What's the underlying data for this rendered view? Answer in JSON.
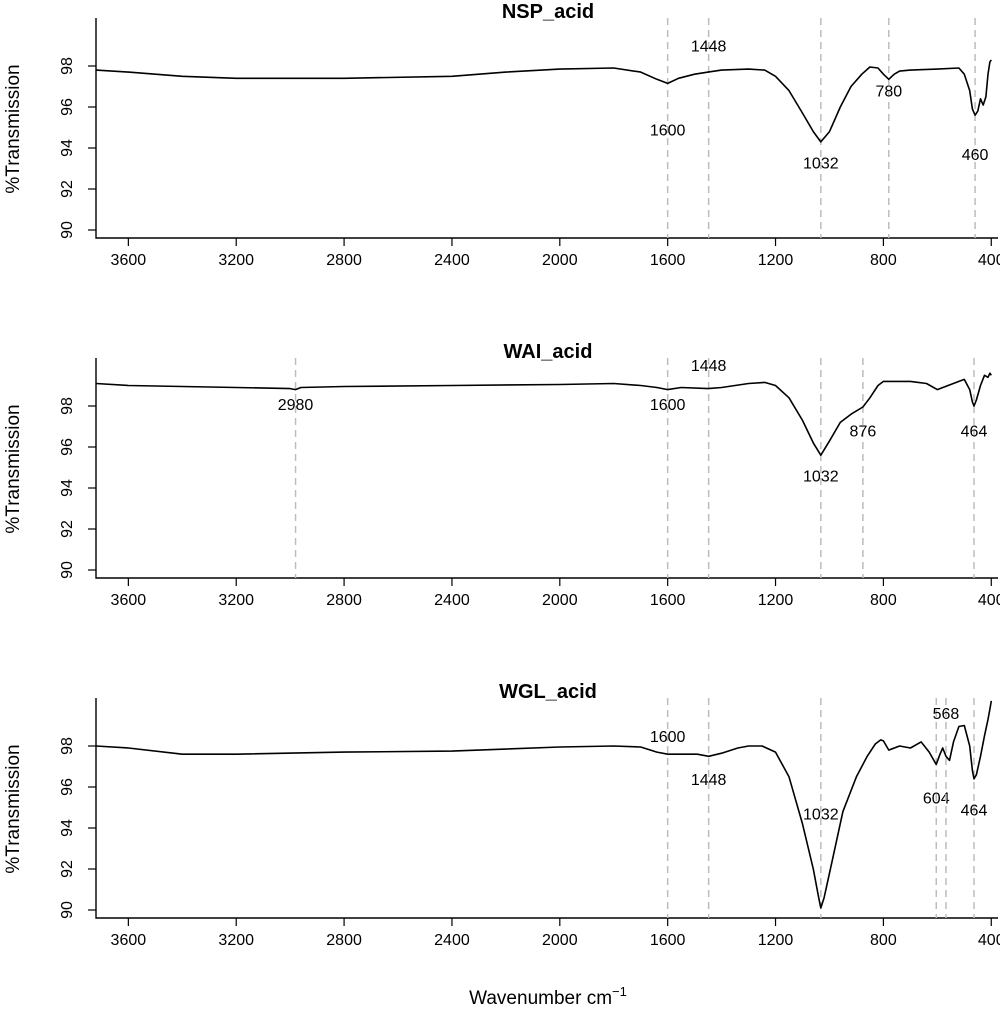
{
  "figure": {
    "xlabel": "Wavenumber cm",
    "xlabel_sup": "−1"
  },
  "chart_data": [
    {
      "type": "line",
      "title": "NSP_acid",
      "ylabel": "%Transmission",
      "xlabel": "",
      "xlim": [
        3720,
        375
      ],
      "ylim": [
        89.6,
        100.2
      ],
      "x_reversed": true,
      "x_ticks": [
        3600,
        3200,
        2800,
        2400,
        2000,
        1600,
        1200,
        800,
        400
      ],
      "y_ticks": [
        90,
        92,
        94,
        96,
        98
      ],
      "grid": false,
      "annotations": [
        {
          "wavenumber": 1600,
          "label": "1600",
          "label_y": 94.9
        },
        {
          "wavenumber": 1448,
          "label": "1448",
          "label_y": 99.0
        },
        {
          "wavenumber": 1032,
          "label": "1032",
          "label_y": 93.3
        },
        {
          "wavenumber": 780,
          "label": "780",
          "label_y": 96.8
        },
        {
          "wavenumber": 460,
          "label": "460",
          "label_y": 93.7
        }
      ],
      "series": [
        {
          "name": "NSP_acid",
          "x": [
            3720,
            3600,
            3400,
            3200,
            2800,
            2400,
            2200,
            2000,
            1800,
            1700,
            1640,
            1600,
            1560,
            1500,
            1450,
            1400,
            1300,
            1240,
            1200,
            1150,
            1100,
            1060,
            1032,
            1000,
            960,
            920,
            880,
            850,
            820,
            800,
            780,
            760,
            740,
            700,
            600,
            520,
            500,
            480,
            470,
            460,
            450,
            440,
            430,
            420,
            412,
            405,
            400
          ],
          "y": [
            97.8,
            97.7,
            97.5,
            97.4,
            97.4,
            97.5,
            97.7,
            97.85,
            97.9,
            97.7,
            97.35,
            97.15,
            97.4,
            97.6,
            97.7,
            97.8,
            97.85,
            97.8,
            97.5,
            96.8,
            95.7,
            94.8,
            94.3,
            94.8,
            96.0,
            97.0,
            97.6,
            97.95,
            97.9,
            97.6,
            97.35,
            97.6,
            97.75,
            97.8,
            97.85,
            97.9,
            97.6,
            96.8,
            95.9,
            95.6,
            95.8,
            96.4,
            96.1,
            96.5,
            97.6,
            98.2,
            98.3
          ]
        }
      ]
    },
    {
      "type": "line",
      "title": "WAI_acid",
      "ylabel": "%Transmission",
      "xlabel": "",
      "xlim": [
        3720,
        375
      ],
      "ylim": [
        89.6,
        100.2
      ],
      "x_reversed": true,
      "x_ticks": [
        3600,
        3200,
        2800,
        2400,
        2000,
        1600,
        1200,
        800,
        400
      ],
      "y_ticks": [
        90,
        92,
        94,
        96,
        98
      ],
      "grid": false,
      "annotations": [
        {
          "wavenumber": 2980,
          "label": "2980",
          "label_y": 98.1
        },
        {
          "wavenumber": 1600,
          "label": "1600",
          "label_y": 98.1
        },
        {
          "wavenumber": 1448,
          "label": "1448",
          "label_y": 100.0
        },
        {
          "wavenumber": 1032,
          "label": "1032",
          "label_y": 94.6
        },
        {
          "wavenumber": 876,
          "label": "876",
          "label_y": 96.8
        },
        {
          "wavenumber": 464,
          "label": "464",
          "label_y": 96.8
        }
      ],
      "series": [
        {
          "name": "WAI_acid",
          "x": [
            3720,
            3600,
            3200,
            3000,
            2980,
            2960,
            2800,
            2400,
            2000,
            1800,
            1700,
            1640,
            1600,
            1550,
            1450,
            1400,
            1300,
            1240,
            1200,
            1150,
            1100,
            1060,
            1032,
            1000,
            960,
            920,
            876,
            850,
            820,
            800,
            700,
            640,
            600,
            560,
            520,
            500,
            480,
            470,
            464,
            455,
            440,
            425,
            412,
            405,
            400
          ],
          "y": [
            99.1,
            99.0,
            98.9,
            98.85,
            98.8,
            98.9,
            98.95,
            99.0,
            99.05,
            99.1,
            99.0,
            98.9,
            98.8,
            98.9,
            98.85,
            98.9,
            99.1,
            99.15,
            99.0,
            98.4,
            97.3,
            96.2,
            95.6,
            96.3,
            97.2,
            97.6,
            97.95,
            98.4,
            99.0,
            99.2,
            99.2,
            99.1,
            98.8,
            99.0,
            99.2,
            99.3,
            98.8,
            98.2,
            98.0,
            98.3,
            99.0,
            99.5,
            99.4,
            99.6,
            99.5
          ]
        }
      ]
    },
    {
      "type": "line",
      "title": "WGL_acid",
      "ylabel": "%Transmission",
      "xlabel": "",
      "xlim": [
        3720,
        375
      ],
      "ylim": [
        89.6,
        100.2
      ],
      "x_reversed": true,
      "x_ticks": [
        3600,
        3200,
        2800,
        2400,
        2000,
        1600,
        1200,
        800,
        400
      ],
      "y_ticks": [
        90,
        92,
        94,
        96,
        98
      ],
      "grid": false,
      "annotations": [
        {
          "wavenumber": 1600,
          "label": "1600",
          "label_y": 98.5
        },
        {
          "wavenumber": 1448,
          "label": "1448",
          "label_y": 96.4
        },
        {
          "wavenumber": 1032,
          "label": "1032",
          "label_y": 94.7
        },
        {
          "wavenumber": 604,
          "label": "604",
          "label_y": 95.5
        },
        {
          "wavenumber": 568,
          "label": "568",
          "label_y": 99.6
        },
        {
          "wavenumber": 464,
          "label": "464",
          "label_y": 94.9
        }
      ],
      "series": [
        {
          "name": "WGL_acid",
          "x": [
            3720,
            3600,
            3400,
            3200,
            2800,
            2400,
            2000,
            1800,
            1700,
            1640,
            1600,
            1550,
            1490,
            1448,
            1400,
            1340,
            1300,
            1250,
            1200,
            1150,
            1100,
            1060,
            1040,
            1032,
            1020,
            990,
            950,
            900,
            860,
            830,
            810,
            800,
            780,
            740,
            700,
            660,
            630,
            604,
            590,
            580,
            568,
            555,
            540,
            520,
            500,
            480,
            470,
            464,
            455,
            440,
            425,
            412,
            405,
            400
          ],
          "y": [
            98.0,
            97.9,
            97.6,
            97.6,
            97.7,
            97.75,
            97.95,
            98.0,
            97.95,
            97.7,
            97.6,
            97.6,
            97.6,
            97.5,
            97.65,
            97.9,
            98.0,
            98.0,
            97.7,
            96.5,
            94.2,
            92.0,
            90.6,
            90.1,
            90.6,
            92.4,
            94.8,
            96.5,
            97.5,
            98.1,
            98.3,
            98.25,
            97.8,
            98.0,
            97.9,
            98.2,
            97.7,
            97.1,
            97.6,
            97.9,
            97.5,
            97.3,
            98.2,
            98.95,
            99.0,
            98.0,
            96.8,
            96.4,
            96.6,
            97.5,
            98.5,
            99.3,
            99.8,
            100.2
          ]
        }
      ]
    }
  ]
}
